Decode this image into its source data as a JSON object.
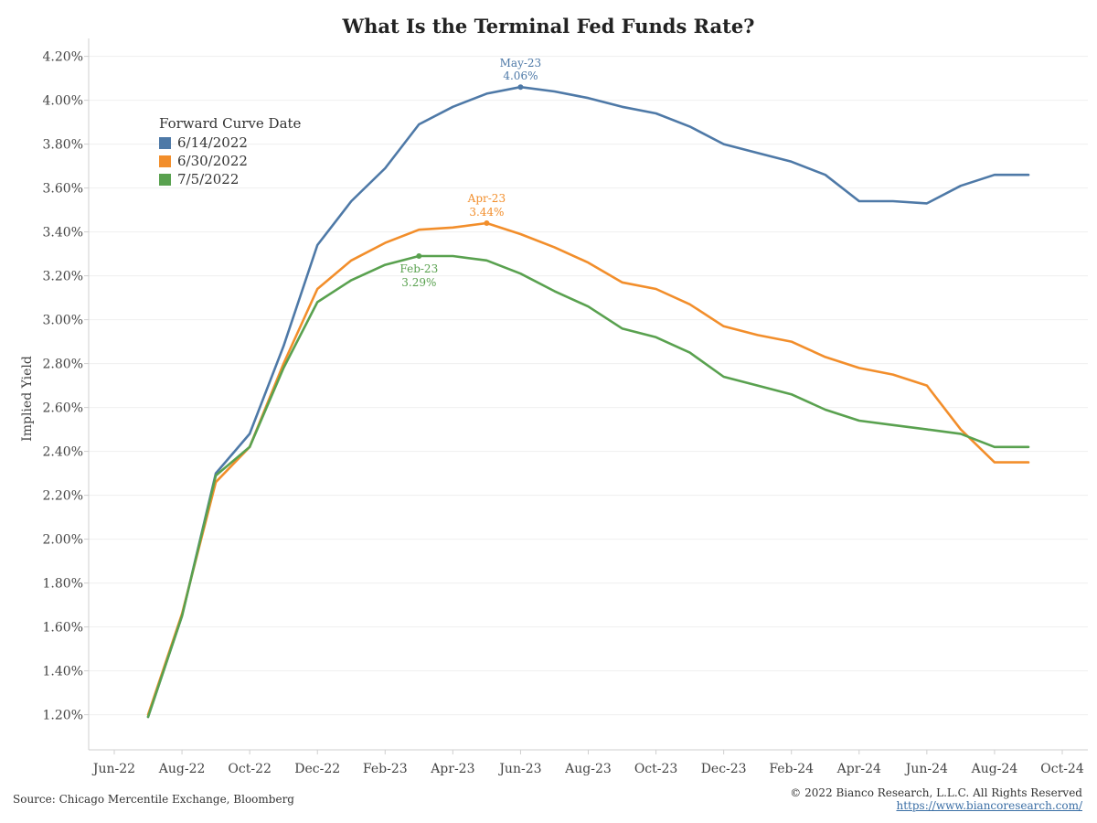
{
  "title": "What Is the Terminal Fed Funds Rate?",
  "source": "Source: Chicago Mercentile Exchange, Bloomberg",
  "copyright": "© 2022 Bianco Research, L.L.C. All Rights Reserved",
  "website": "https://www.biancoresearch.com/",
  "chart_data": {
    "type": "line",
    "ylabel": "Implied Yield",
    "xlabel": "",
    "ylim": [
      1.04,
      4.24
    ],
    "y_ticks": [
      "1.20%",
      "1.40%",
      "1.60%",
      "1.80%",
      "2.00%",
      "2.20%",
      "2.40%",
      "2.60%",
      "2.80%",
      "3.00%",
      "3.20%",
      "3.40%",
      "3.60%",
      "3.80%",
      "4.00%",
      "4.20%"
    ],
    "y_tick_values": [
      1.2,
      1.4,
      1.6,
      1.8,
      2.0,
      2.2,
      2.4,
      2.6,
      2.8,
      3.0,
      3.2,
      3.4,
      3.6,
      3.8,
      4.0,
      4.2
    ],
    "x_ticks": [
      "Jun-22",
      "Aug-22",
      "Oct-22",
      "Dec-22",
      "Feb-23",
      "Apr-23",
      "Jun-23",
      "Aug-23",
      "Oct-23",
      "Dec-23",
      "Feb-24",
      "Apr-24",
      "Jun-24",
      "Aug-24",
      "Oct-24"
    ],
    "x_tick_values": [
      "2022-06",
      "2022-08",
      "2022-10",
      "2022-12",
      "2023-02",
      "2023-04",
      "2023-06",
      "2023-08",
      "2023-10",
      "2023-12",
      "2024-02",
      "2024-04",
      "2024-06",
      "2024-08",
      "2024-10"
    ],
    "x": [
      "2022-07",
      "2022-08",
      "2022-09",
      "2022-10",
      "2022-11",
      "2022-12",
      "2023-01",
      "2023-02",
      "2023-03",
      "2023-04",
      "2023-05",
      "2023-06",
      "2023-07",
      "2023-08",
      "2023-09",
      "2023-10",
      "2023-11",
      "2023-12",
      "2024-01",
      "2024-02",
      "2024-03",
      "2024-04",
      "2024-05",
      "2024-06",
      "2024-07",
      "2024-08",
      "2024-09"
    ],
    "legend_title": "Forward Curve Date",
    "legend_position": "top-left",
    "grid": "horizontal",
    "series": [
      {
        "name": "6/14/2022",
        "color": "#4e79a7",
        "values": [
          1.19,
          1.65,
          2.3,
          2.48,
          2.88,
          3.34,
          3.54,
          3.69,
          3.89,
          3.97,
          4.03,
          4.06,
          4.04,
          4.01,
          3.97,
          3.94,
          3.88,
          3.8,
          3.76,
          3.72,
          3.66,
          3.54,
          3.54,
          3.53,
          3.61,
          3.66,
          3.66
        ]
      },
      {
        "name": "6/30/2022",
        "color": "#f28e2b",
        "values": [
          1.2,
          1.66,
          2.26,
          2.42,
          2.8,
          3.14,
          3.27,
          3.35,
          3.41,
          3.42,
          3.44,
          3.39,
          3.33,
          3.26,
          3.17,
          3.14,
          3.07,
          2.97,
          2.93,
          2.9,
          2.83,
          2.78,
          2.75,
          2.7,
          2.5,
          2.35,
          2.35
        ]
      },
      {
        "name": "7/5/2022",
        "color": "#59a14f",
        "values": [
          1.19,
          1.65,
          2.29,
          2.42,
          2.78,
          3.08,
          3.18,
          3.25,
          3.29,
          3.29,
          3.27,
          3.21,
          3.13,
          3.06,
          2.96,
          2.92,
          2.85,
          2.74,
          2.7,
          2.66,
          2.59,
          2.54,
          2.52,
          2.5,
          2.48,
          2.42,
          2.42
        ]
      }
    ],
    "annotations": [
      {
        "series": "6/14/2022",
        "x": "2023-06",
        "y": 4.06,
        "label": "May-23",
        "value_label": "4.06%",
        "color": "#4e79a7"
      },
      {
        "series": "6/30/2022",
        "x": "2023-05",
        "y": 3.44,
        "label": "Apr-23",
        "value_label": "3.44%",
        "color": "#f28e2b"
      },
      {
        "series": "7/5/2022",
        "x": "2023-03",
        "y": 3.29,
        "label": "Feb-23",
        "value_label": "3.29%",
        "color": "#59a14f"
      }
    ]
  }
}
